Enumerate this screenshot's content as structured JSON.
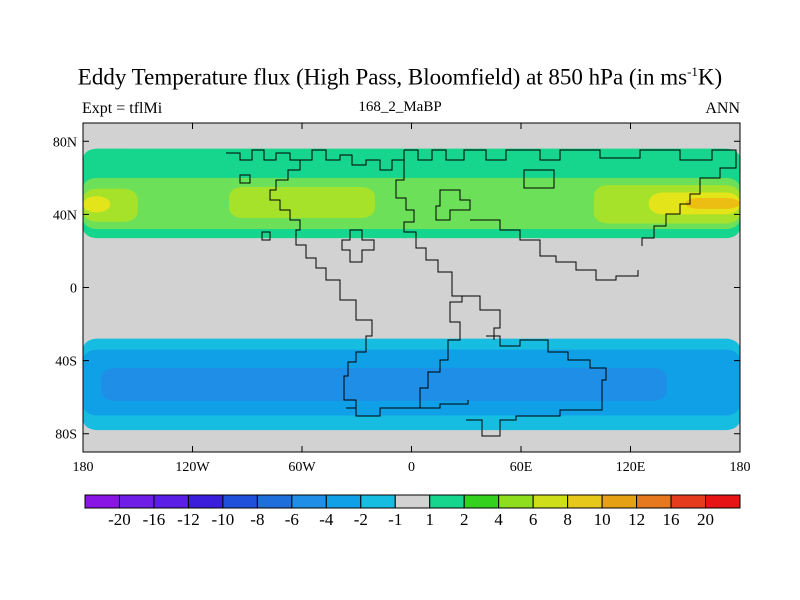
{
  "header": {
    "title_main": "Eddy Temperature flux (High Pass, Bloomfield) at 850 hPa (in ms",
    "title_sup": "-1",
    "title_end": "K)",
    "left_label": "Expt = tflMi",
    "center_label": "168_2_MaBP",
    "right_label": "ANN"
  },
  "chart_data": {
    "type": "heatmap",
    "projection": "cylindrical-equidistant",
    "xlim": [
      -180,
      180
    ],
    "ylim": [
      -90,
      90
    ],
    "x_ticks": [
      {
        "value": -180,
        "label": "180"
      },
      {
        "value": -120,
        "label": "120W"
      },
      {
        "value": -60,
        "label": "60W"
      },
      {
        "value": 0,
        "label": "0"
      },
      {
        "value": 60,
        "label": "60E"
      },
      {
        "value": 120,
        "label": "120E"
      },
      {
        "value": 180,
        "label": "180"
      }
    ],
    "y_ticks": [
      {
        "value": 80,
        "label": "80N"
      },
      {
        "value": 40,
        "label": "40N"
      },
      {
        "value": 0,
        "label": "0"
      },
      {
        "value": -40,
        "label": "40S"
      },
      {
        "value": -80,
        "label": "80S"
      }
    ],
    "background_color": "#d2d2d2",
    "contour_regions": [
      {
        "level": "1-2",
        "color": "#16d58c",
        "lon": [
          -180,
          180
        ],
        "lat": [
          27,
          76
        ]
      },
      {
        "level": "2-4",
        "color": "#6de05a",
        "lon": [
          -180,
          180
        ],
        "lat": [
          32,
          60
        ]
      },
      {
        "level": "4-6",
        "color": "#a6e22a",
        "lon": [
          -100,
          -20
        ],
        "lat": [
          38,
          55
        ]
      },
      {
        "level": "4-6",
        "color": "#a6e22a",
        "lon": [
          100,
          180
        ],
        "lat": [
          35,
          56
        ]
      },
      {
        "level": "4-6",
        "color": "#a6e22a",
        "lon": [
          -180,
          -150
        ],
        "lat": [
          36,
          54
        ]
      },
      {
        "level": "6-8",
        "color": "#e3e51a",
        "lon": [
          130,
          180
        ],
        "lat": [
          40,
          52
        ]
      },
      {
        "level": "6-8",
        "color": "#e3e51a",
        "lon": [
          -180,
          -165
        ],
        "lat": [
          41,
          50
        ]
      },
      {
        "level": "8-10",
        "color": "#ecbe14",
        "lon": [
          150,
          180
        ],
        "lat": [
          43,
          49
        ]
      },
      {
        "level": "-1--2",
        "color": "#16bde0",
        "lon": [
          -180,
          180
        ],
        "lat": [
          -78,
          -28
        ]
      },
      {
        "level": "-2--4",
        "color": "#0fa0e8",
        "lon": [
          -180,
          180
        ],
        "lat": [
          -70,
          -34
        ]
      },
      {
        "level": "-4--6",
        "color": "#1e8ee6",
        "lon": [
          -170,
          140
        ],
        "lat": [
          -62,
          -44
        ]
      }
    ],
    "colorbar": {
      "labels": [
        "-20",
        "-16",
        "-12",
        "-10",
        "-8",
        "-6",
        "-4",
        "-2",
        "-1",
        "1",
        "2",
        "4",
        "6",
        "8",
        "10",
        "12",
        "16",
        "20"
      ],
      "colors": [
        "#8a16e6",
        "#6e1ee6",
        "#5a1ee6",
        "#3a1edc",
        "#1e50dc",
        "#1e6edc",
        "#1e8ee6",
        "#0fa0e8",
        "#16bde0",
        "#d2d2d2",
        "#16d58c",
        "#34d21e",
        "#8ede1e",
        "#cedf1a",
        "#e6c81a",
        "#e6a014",
        "#e6781e",
        "#e63c1e",
        "#e61414"
      ]
    }
  }
}
